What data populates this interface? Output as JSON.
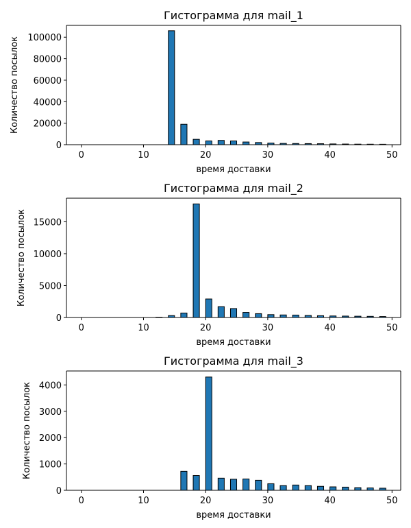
{
  "chart_data": [
    {
      "type": "bar",
      "title": "Гистограмма для mail_1",
      "xlabel": "время доставки",
      "ylabel": "Количество посылок",
      "xlim": [
        -2.4,
        51.4
      ],
      "ylim": [
        0,
        111000
      ],
      "xticks": [
        0,
        10,
        20,
        30,
        40,
        50
      ],
      "yticks": [
        0,
        20000,
        40000,
        60000,
        80000,
        100000
      ],
      "bin_width": 1,
      "bin_starts": [
        0,
        2,
        4,
        6,
        8,
        10,
        12,
        14,
        16,
        18,
        20,
        22,
        24,
        26,
        28,
        30,
        32,
        34,
        36,
        38,
        40,
        42,
        44,
        46,
        48
      ],
      "values": [
        0,
        0,
        0,
        0,
        0,
        0,
        0,
        106000,
        19000,
        5000,
        3500,
        4000,
        3500,
        2500,
        2000,
        1500,
        1200,
        1100,
        1000,
        900,
        700,
        600,
        500,
        450,
        400
      ]
    },
    {
      "type": "bar",
      "title": "Гистограмма для mail_2",
      "xlabel": "время доставки",
      "ylabel": "Количество посылок",
      "xlim": [
        -2.4,
        51.4
      ],
      "ylim": [
        0,
        18700
      ],
      "xticks": [
        0,
        10,
        20,
        30,
        40,
        50
      ],
      "yticks": [
        0,
        5000,
        10000,
        15000
      ],
      "bin_width": 1,
      "bin_starts": [
        0,
        2,
        4,
        6,
        8,
        10,
        12,
        14,
        16,
        18,
        20,
        22,
        24,
        26,
        28,
        30,
        32,
        34,
        36,
        38,
        40,
        42,
        44,
        46,
        48
      ],
      "values": [
        0,
        0,
        0,
        0,
        0,
        0,
        50,
        300,
        700,
        17800,
        2900,
        1700,
        1400,
        800,
        600,
        450,
        400,
        380,
        320,
        280,
        240,
        220,
        200,
        180,
        150
      ]
    },
    {
      "type": "bar",
      "title": "Гистограмма для mail_3",
      "xlabel": "время доставки",
      "ylabel": "Количество посылок",
      "xlim": [
        -2.4,
        51.4
      ],
      "ylim": [
        0,
        4530
      ],
      "xticks": [
        0,
        10,
        20,
        30,
        40,
        50
      ],
      "yticks": [
        0,
        1000,
        2000,
        3000,
        4000
      ],
      "bin_width": 1,
      "bin_starts": [
        0,
        2,
        4,
        6,
        8,
        10,
        12,
        14,
        16,
        18,
        20,
        22,
        24,
        26,
        28,
        30,
        32,
        34,
        36,
        38,
        40,
        42,
        44,
        46,
        48
      ],
      "values": [
        0,
        0,
        0,
        0,
        0,
        0,
        0,
        0,
        720,
        560,
        4300,
        460,
        420,
        430,
        380,
        250,
        180,
        200,
        180,
        150,
        130,
        120,
        100,
        90,
        80
      ]
    }
  ]
}
